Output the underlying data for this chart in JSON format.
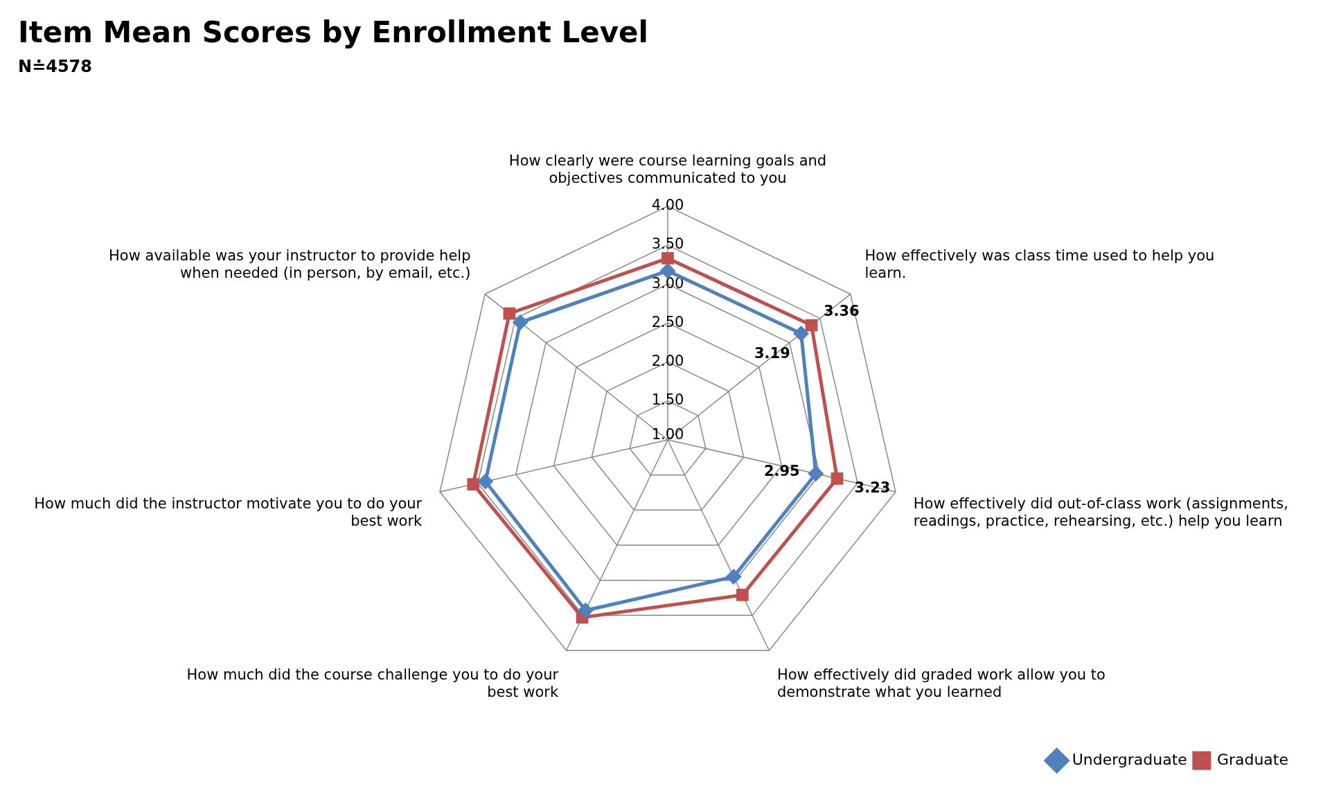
{
  "chart_data": {
    "type": "radar",
    "title": "Item Mean Scores by Enrollment Level",
    "subtitle": "N≐4578",
    "categories": [
      "How clearly were course learning goals and objectives communicated to you",
      "How effectively was class time used to help you learn.",
      "How effectively did out-of-class work (assignments, readings, practice, rehearsing, etc.) help you learn",
      "How effectively did graded work allow you to demonstrate what you learned",
      "How much did the course challenge you to do your best work",
      "How much did the instructor motivate you to do your best work",
      "How available was your instructor to provide help when needed (in person, by email, etc.)"
    ],
    "series": [
      {
        "name": "Undergraduate",
        "color": "#4f81bd",
        "marker": "diamond",
        "values": [
          3.17,
          3.19,
          2.95,
          2.95,
          3.43,
          3.4,
          3.42
        ],
        "value_labels": [
          null,
          "3.19",
          "2.95",
          null,
          null,
          null,
          null
        ]
      },
      {
        "name": "Graduate",
        "color": "#c0504d",
        "marker": "square",
        "values": [
          3.33,
          3.36,
          3.23,
          3.21,
          3.53,
          3.56,
          3.6
        ],
        "value_labels": [
          null,
          "3.36",
          "3.23",
          null,
          null,
          null,
          null
        ]
      }
    ],
    "ylim": [
      1,
      4
    ],
    "yticks": [
      {
        "value": 1,
        "label": "1.00"
      },
      {
        "value": 1.5,
        "label": "1.50"
      },
      {
        "value": 2,
        "label": "2.00"
      },
      {
        "value": 2.5,
        "label": "2.50"
      },
      {
        "value": 3,
        "label": "3.00"
      },
      {
        "value": 3.5,
        "label": "3.50"
      },
      {
        "value": 4,
        "label": "4.00"
      }
    ],
    "grid": true,
    "legend": "bottom right"
  }
}
